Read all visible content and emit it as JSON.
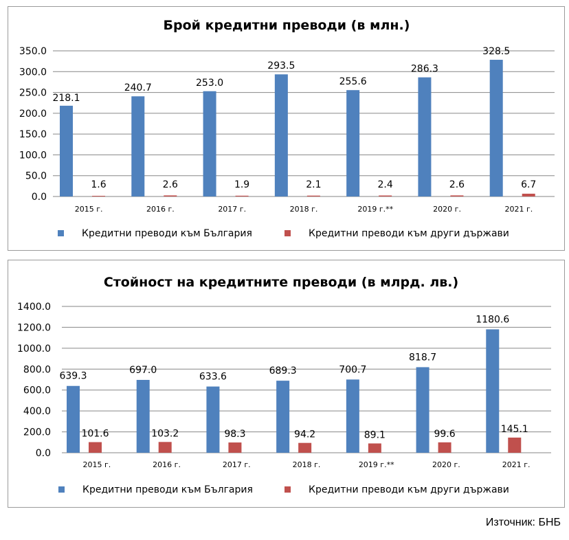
{
  "chart_data": [
    {
      "type": "bar",
      "title": "Брой кредитни преводи (в млн.)",
      "categories": [
        "2015 г.",
        "2016 г.",
        "2017 г.",
        "2018 г.",
        "2019 г.**",
        "2020 г.",
        "2021 г."
      ],
      "series": [
        {
          "name": "Кредитни преводи към България",
          "color": "#4F81BD",
          "values": [
            218.1,
            240.7,
            253.0,
            293.5,
            255.6,
            286.3,
            328.5
          ],
          "labels": [
            "218.1",
            "240.7",
            "253.0",
            "293.5",
            "255.6",
            "286.3",
            "328.5"
          ]
        },
        {
          "name": "Кредитни преводи към други държави",
          "color": "#C0504D",
          "values": [
            1.6,
            2.6,
            1.9,
            2.1,
            2.4,
            2.6,
            6.7
          ],
          "labels": [
            "1.6",
            "2.6",
            "1.9",
            "2.1",
            "2.4",
            "2.6",
            "6.7"
          ]
        }
      ],
      "ylim": [
        0,
        350
      ],
      "yticks": [
        "0.0",
        "50.0",
        "100.0",
        "150.0",
        "200.0",
        "250.0",
        "300.0",
        "350.0"
      ],
      "grid": true,
      "legend": "bottom"
    },
    {
      "type": "bar",
      "title": "Стойност на кредитните преводи (в млрд. лв.)",
      "categories": [
        "2015 г.",
        "2016 г.",
        "2017 г.",
        "2018 г.",
        "2019 г.**",
        "2020 г.",
        "2021 г."
      ],
      "series": [
        {
          "name": "Кредитни преводи към България",
          "color": "#4F81BD",
          "values": [
            639.3,
            697.0,
            633.6,
            689.3,
            700.7,
            818.7,
            1180.6
          ],
          "labels": [
            "639.3",
            "697.0",
            "633.6",
            "689.3",
            "700.7",
            "818.7",
            "1180.6"
          ]
        },
        {
          "name": "Кредитни преводи към други държави",
          "color": "#C0504D",
          "values": [
            101.6,
            103.2,
            98.3,
            94.2,
            89.1,
            99.6,
            145.1
          ],
          "labels": [
            "101.6",
            "103.2",
            "98.3",
            "94.2",
            "89.1",
            "99.6",
            "145.1"
          ]
        }
      ],
      "ylim": [
        0,
        1400
      ],
      "yticks": [
        "0.0",
        "200.0",
        "400.0",
        "600.0",
        "800.0",
        "1000.0",
        "1200.0",
        "1400.0"
      ],
      "grid": true,
      "legend": "bottom"
    }
  ],
  "source": "Източник: БНБ"
}
